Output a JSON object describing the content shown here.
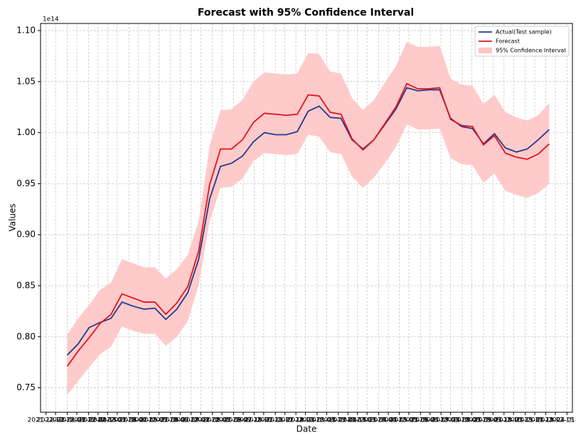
{
  "chart_data": {
    "type": "line",
    "title": "Forecast with 95% Confidence Interval",
    "x_label": "Date",
    "y_label": "Values",
    "y_offset_text": "1e14",
    "x": [
      "2022-01-01",
      "2022-01-17",
      "2022-02-02",
      "2022-02-18",
      "2022-03-06",
      "2022-03-22",
      "2022-04-07",
      "2022-04-23",
      "2022-05-09",
      "2022-05-25",
      "2022-06-10",
      "2022-06-26",
      "2022-07-12",
      "2022-07-28",
      "2022-08-13",
      "2022-08-29",
      "2022-09-14",
      "2022-09-30",
      "2022-10-16",
      "2022-11-01",
      "2022-11-17",
      "2022-12-03",
      "2022-12-19",
      "2023-01-04",
      "2023-01-20",
      "2023-02-05",
      "2023-02-21",
      "2023-03-09",
      "2023-03-25",
      "2023-04-10",
      "2023-04-26",
      "2023-05-12",
      "2023-05-28",
      "2023-06-13",
      "2023-06-29",
      "2023-07-15",
      "2023-07-31",
      "2023-08-16",
      "2023-09-01",
      "2023-09-17",
      "2023-10-03",
      "2023-10-19",
      "2023-11-04",
      "2023-11-20",
      "2023-12-06"
    ],
    "band": {
      "name": "95% Confidence Interval",
      "color": "#ffc4c4",
      "lower": [
        0.743,
        0.757,
        0.77,
        0.783,
        0.79,
        0.81,
        0.806,
        0.803,
        0.803,
        0.791,
        0.8,
        0.815,
        0.851,
        0.913,
        0.946,
        0.947,
        0.955,
        0.972,
        0.98,
        0.979,
        0.978,
        0.979,
        0.998,
        0.996,
        0.981,
        0.979,
        0.957,
        0.946,
        0.956,
        0.97,
        0.986,
        1.008,
        1.003,
        1.003,
        1.004,
        0.975,
        0.969,
        0.968,
        0.951,
        0.96,
        0.943,
        0.939,
        0.936,
        0.941,
        0.95
      ],
      "upper": [
        0.802,
        0.818,
        0.831,
        0.846,
        0.853,
        0.876,
        0.872,
        0.868,
        0.868,
        0.857,
        0.866,
        0.88,
        0.913,
        0.987,
        1.022,
        1.023,
        1.032,
        1.05,
        1.059,
        1.058,
        1.057,
        1.058,
        1.078,
        1.077,
        1.06,
        1.058,
        1.034,
        1.022,
        1.032,
        1.049,
        1.065,
        1.089,
        1.084,
        1.084,
        1.085,
        1.053,
        1.047,
        1.046,
        1.028,
        1.037,
        1.02,
        1.015,
        1.012,
        1.017,
        1.029
      ]
    },
    "series": [
      {
        "name": "Actual(Test sample)",
        "color": "#1f3b8f",
        "values": [
          0.782,
          0.793,
          0.809,
          0.814,
          0.818,
          0.834,
          0.83,
          0.827,
          0.828,
          0.817,
          0.827,
          0.843,
          0.876,
          0.935,
          0.967,
          0.97,
          0.977,
          0.991,
          1.0,
          0.998,
          0.998,
          1.001,
          1.021,
          1.026,
          1.015,
          1.014,
          0.993,
          0.984,
          0.993,
          1.008,
          1.023,
          1.044,
          1.041,
          1.042,
          1.042,
          1.014,
          1.006,
          1.004,
          0.989,
          0.999,
          0.985,
          0.981,
          0.984,
          0.993,
          1.003
        ]
      },
      {
        "name": "Forecast",
        "color": "#e3141c",
        "values": [
          0.771,
          0.786,
          0.799,
          0.813,
          0.822,
          0.842,
          0.838,
          0.834,
          0.834,
          0.822,
          0.833,
          0.849,
          0.884,
          0.949,
          0.984,
          0.984,
          0.993,
          1.01,
          1.019,
          1.018,
          1.017,
          1.018,
          1.037,
          1.036,
          1.02,
          1.018,
          0.994,
          0.983,
          0.993,
          1.009,
          1.025,
          1.048,
          1.043,
          1.043,
          1.044,
          1.013,
          1.007,
          1.006,
          0.988,
          0.997,
          0.98,
          0.976,
          0.974,
          0.979,
          0.989
        ]
      }
    ],
    "xlim": [
      "2021-11-23",
      "2024-01-09"
    ],
    "xticks": [
      "2021-12-01",
      "2021-12-15",
      "2022-01-01",
      "2022-01-15",
      "2022-02-01",
      "2022-02-15",
      "2022-03-01",
      "2022-03-15",
      "2022-04-01",
      "2022-04-15",
      "2022-05-01",
      "2022-05-15",
      "2022-06-01",
      "2022-06-15",
      "2022-07-01",
      "2022-07-15",
      "2022-08-01",
      "2022-08-15",
      "2022-09-01",
      "2022-09-15",
      "2022-10-01",
      "2022-10-15",
      "2022-11-01",
      "2022-11-15",
      "2022-12-01",
      "2022-12-15",
      "2023-01-01",
      "2023-01-15",
      "2023-02-01",
      "2023-02-15",
      "2023-03-01",
      "2023-03-15",
      "2023-04-01",
      "2023-04-15",
      "2023-05-01",
      "2023-05-15",
      "2023-06-01",
      "2023-06-15",
      "2023-07-01",
      "2023-07-15",
      "2023-08-01",
      "2023-08-15",
      "2023-09-01",
      "2023-09-15",
      "2023-10-01",
      "2023-10-15",
      "2023-11-01",
      "2023-11-15",
      "2023-12-01",
      "2023-12-15",
      "2024-01-01"
    ],
    "ylim": [
      0.726,
      1.107
    ],
    "yticks": [
      0.75,
      {
        "value": 0.8,
        "label": "0.80"
      },
      0.85,
      {
        "value": 0.9,
        "label": "0.90"
      },
      0.95,
      {
        "value": 1,
        "label": "1.00"
      },
      1.05,
      {
        "value": 1.1,
        "label": "1.10"
      }
    ],
    "grid": true,
    "legend": "upper right"
  }
}
